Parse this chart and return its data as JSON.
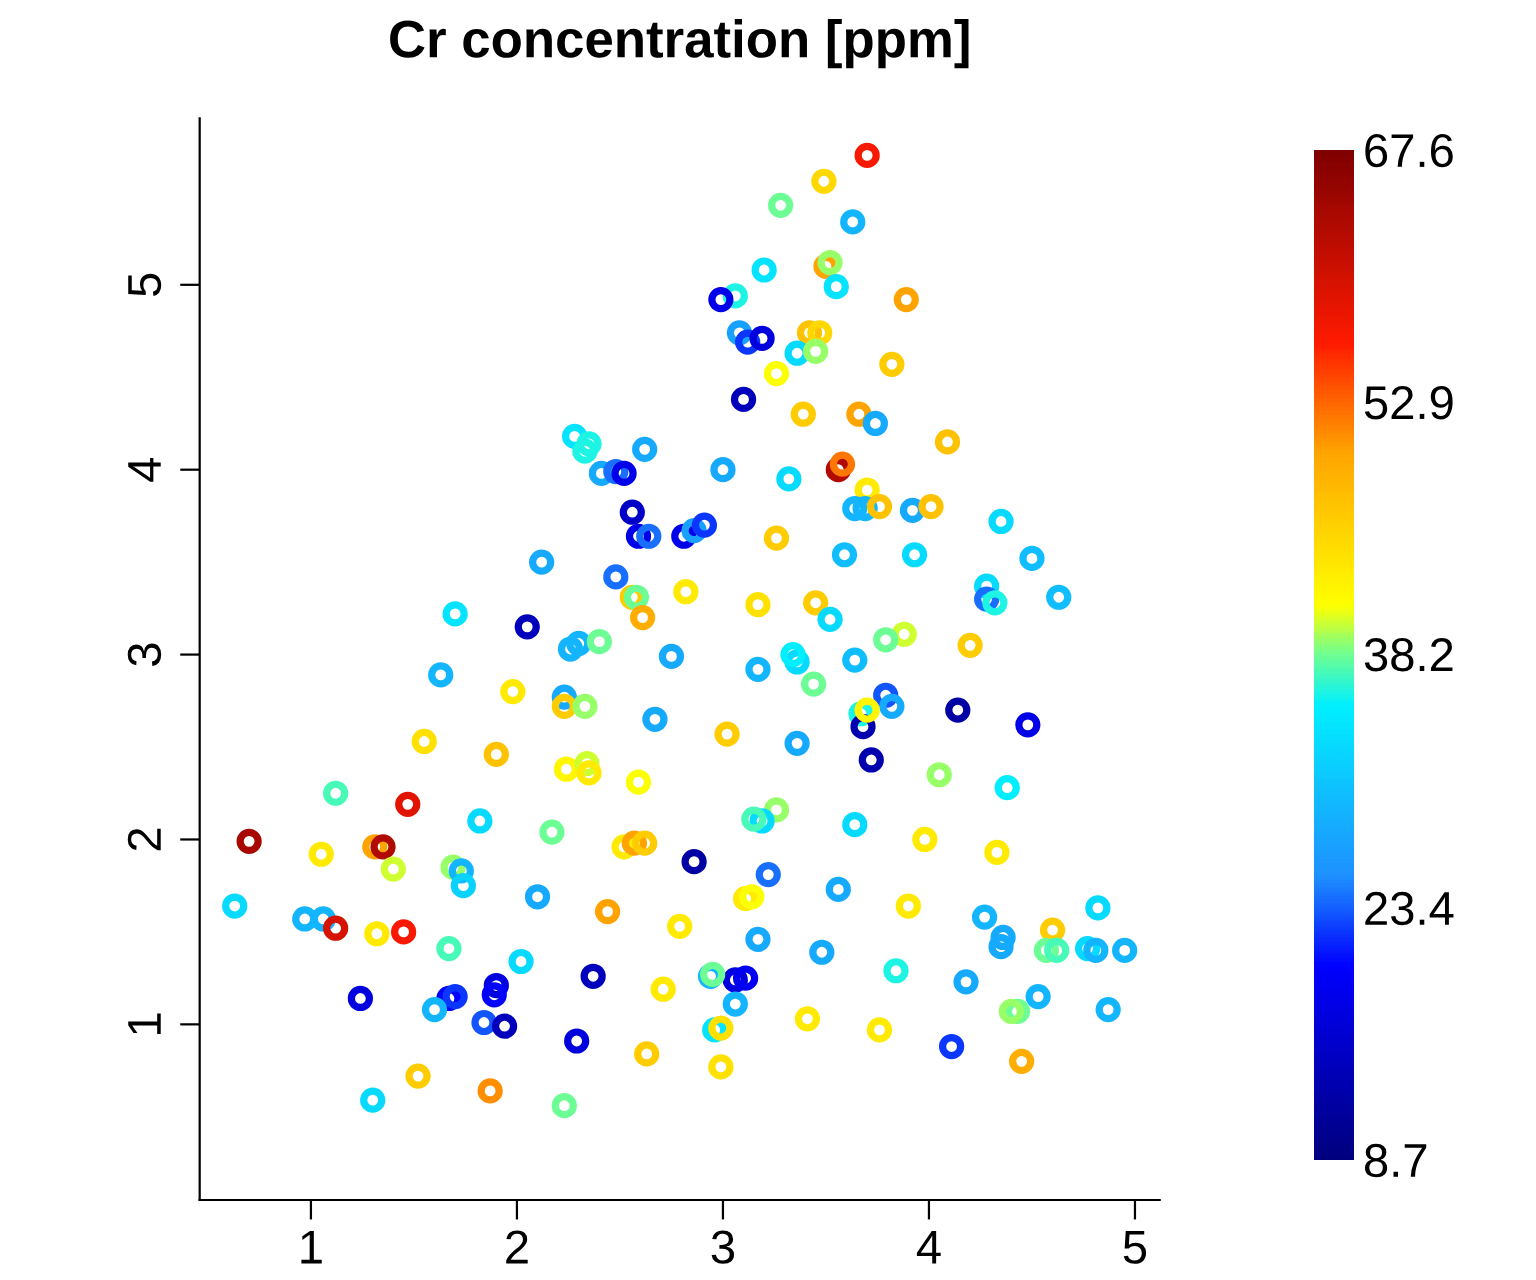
{
  "chart_data": {
    "type": "scatter",
    "title": "Cr concentration [ppm]",
    "x": [
      3.7,
      3.49,
      3.28,
      3.63,
      3.2,
      3.5,
      3.52,
      3.55,
      3.89,
      3.06,
      2.99,
      3.08,
      3.12,
      3.19,
      3.42,
      3.47,
      3.36,
      3.45,
      3.26,
      3.82,
      3.1,
      3.39,
      3.66,
      3.74,
      4.09,
      3.56,
      3.58,
      3.0,
      3.32,
      3.7,
      3.64,
      3.69,
      3.76,
      3.92,
      4.01,
      3.26,
      3.59,
      3.93,
      4.35,
      4.5,
      4.28,
      4.28,
      4.32,
      4.63,
      3.88,
      3.45,
      3.79,
      4.2,
      3.17,
      3.36,
      3.34,
      3.64,
      3.44,
      3.79,
      3.82,
      3.67,
      3.68,
      3.7,
      4.14,
      4.48,
      3.72,
      3.36,
      4.05,
      4.38,
      3.26,
      3.19,
      3.15,
      3.64,
      3.98,
      4.33,
      3.22,
      3.11,
      3.14,
      3.56,
      3.9,
      4.27,
      4.6,
      4.57,
      4.62,
      4.77,
      4.81,
      4.82,
      4.95,
      3.17,
      3.48,
      3.84,
      4.18,
      4.53,
      4.43,
      4.4,
      4.87,
      3.06,
      3.11,
      2.94,
      2.95,
      3.06,
      2.96,
      2.99,
      3.41,
      3.76,
      4.11,
      4.45,
      2.99,
      2.28,
      2.35,
      2.33,
      2.62,
      2.41,
      2.48,
      2.52,
      2.56,
      2.59,
      2.64,
      2.81,
      2.86,
      2.91,
      2.12,
      2.48,
      2.56,
      2.58,
      2.82,
      2.61,
      1.7,
      2.05,
      2.26,
      2.3,
      2.4,
      2.75,
      1.63,
      1.98,
      2.23,
      2.23,
      2.33,
      2.67,
      1.55,
      1.9,
      2.24,
      2.34,
      2.35,
      2.59,
      1.12,
      1.47,
      1.82,
      2.17,
      0.7,
      1.05,
      1.31,
      1.35,
      1.4,
      1.69,
      1.73,
      1.74,
      2.52,
      2.57,
      2.62,
      2.86,
      0.63,
      0.97,
      1.06,
      1.12,
      1.32,
      1.45,
      2.1,
      2.44,
      2.79,
      1.67,
      2.02,
      2.37,
      1.24,
      1.67,
      1.7,
      1.9,
      1.89,
      1.6,
      1.84,
      1.94,
      2.29,
      2.71,
      2.63,
      1.52,
      1.87,
      1.3,
      2.23,
      3.02,
      4.36,
      4.35,
      3.17,
      3.52
    ],
    "values": [
      5.7,
      5.56,
      5.43,
      5.34,
      5.08,
      5.1,
      5.12,
      4.99,
      4.92,
      4.94,
      4.92,
      4.74,
      4.69,
      4.71,
      4.74,
      4.74,
      4.63,
      4.64,
      4.52,
      4.57,
      4.38,
      4.3,
      4.3,
      4.25,
      4.15,
      4.0,
      4.03,
      4.0,
      3.95,
      3.89,
      3.79,
      3.79,
      3.8,
      3.78,
      3.8,
      3.63,
      3.54,
      3.54,
      3.72,
      3.52,
      3.37,
      3.3,
      3.28,
      3.31,
      3.11,
      3.28,
      3.08,
      3.05,
      2.92,
      2.96,
      3.0,
      2.97,
      2.84,
      2.78,
      2.72,
      2.68,
      2.61,
      2.7,
      2.7,
      2.62,
      2.43,
      2.52,
      2.35,
      2.28,
      2.16,
      2.1,
      2.11,
      2.08,
      2.0,
      1.93,
      1.81,
      1.68,
      1.69,
      1.73,
      1.64,
      1.58,
      1.51,
      1.4,
      1.4,
      1.41,
      1.4,
      1.63,
      1.4,
      1.46,
      1.39,
      1.29,
      1.23,
      1.15,
      1.07,
      1.07,
      1.08,
      1.24,
      1.25,
      1.26,
      1.27,
      1.11,
      0.97,
      0.98,
      1.03,
      0.97,
      0.88,
      0.8,
      0.77,
      4.18,
      4.14,
      4.1,
      4.11,
      3.98,
      3.99,
      3.98,
      3.77,
      3.64,
      3.64,
      3.64,
      3.67,
      3.7,
      3.5,
      3.42,
      3.31,
      3.31,
      3.34,
      3.2,
      3.22,
      3.15,
      3.03,
      3.06,
      3.07,
      2.99,
      2.89,
      2.8,
      2.77,
      2.72,
      2.72,
      2.65,
      2.53,
      2.46,
      2.38,
      2.41,
      2.36,
      2.31,
      2.25,
      2.19,
      2.1,
      2.04,
      1.99,
      1.92,
      1.96,
      1.96,
      1.84,
      1.85,
      1.83,
      1.75,
      1.96,
      1.98,
      1.98,
      1.88,
      1.64,
      1.57,
      1.57,
      1.52,
      1.49,
      1.5,
      1.69,
      1.61,
      1.53,
      1.41,
      1.34,
      1.26,
      1.14,
      1.14,
      1.15,
      1.21,
      1.16,
      1.08,
      1.01,
      0.99,
      0.91,
      1.19,
      0.84,
      0.72,
      0.64,
      0.59,
      0.56,
      2.57,
      1.47,
      1.42,
      3.27,
      3.19
    ],
    "cvalues": [
      57,
      45,
      38,
      29,
      34,
      50,
      39,
      34,
      50,
      36,
      18,
      27,
      22,
      17,
      47,
      45,
      33,
      39,
      41,
      46,
      14,
      46,
      50,
      28,
      47,
      63,
      52,
      28,
      33,
      43,
      29,
      29,
      47,
      28,
      47,
      46,
      30,
      33,
      33,
      30,
      33,
      24,
      36,
      30,
      40,
      46,
      38,
      46,
      29,
      33,
      35,
      30,
      38,
      23,
      28,
      36,
      13,
      42,
      12,
      18,
      13,
      28,
      39,
      35,
      39,
      33,
      37,
      33,
      43,
      43,
      24,
      43,
      41,
      28,
      43,
      29,
      46,
      38,
      37,
      33,
      29,
      33,
      29,
      28,
      28,
      36,
      28,
      29,
      38,
      39,
      29,
      17,
      19,
      29,
      38,
      29,
      34,
      44,
      43,
      43,
      22,
      49,
      44,
      34,
      36,
      36,
      28,
      28,
      24,
      18,
      15,
      18,
      24,
      18,
      27,
      22,
      28,
      24,
      46,
      38,
      43,
      49,
      34,
      14,
      29,
      29,
      38,
      28,
      29,
      43,
      28,
      46,
      39,
      28,
      44,
      47,
      42,
      40,
      43,
      41,
      37,
      59,
      33,
      38,
      64,
      43,
      50,
      63,
      40,
      39,
      29,
      32,
      43,
      50,
      46,
      12,
      33,
      29,
      29,
      60,
      43,
      57,
      28,
      50,
      43,
      37,
      33,
      14,
      17,
      20,
      22,
      17,
      20,
      29,
      23,
      14,
      17,
      43,
      46,
      46,
      51,
      33,
      38,
      46,
      28,
      28,
      44,
      33
    ],
    "xlim": [
      0.46,
      5.12
    ],
    "ylim": [
      0.05,
      5.9
    ],
    "xticks": [
      1,
      2,
      3,
      4,
      5
    ],
    "yticks": [
      1,
      2,
      3,
      4,
      5
    ],
    "clim": [
      8.7,
      67.6
    ],
    "cticks": [
      8.7,
      23.4,
      38.2,
      52.9,
      67.6
    ],
    "marker": "circle",
    "grid": false
  }
}
